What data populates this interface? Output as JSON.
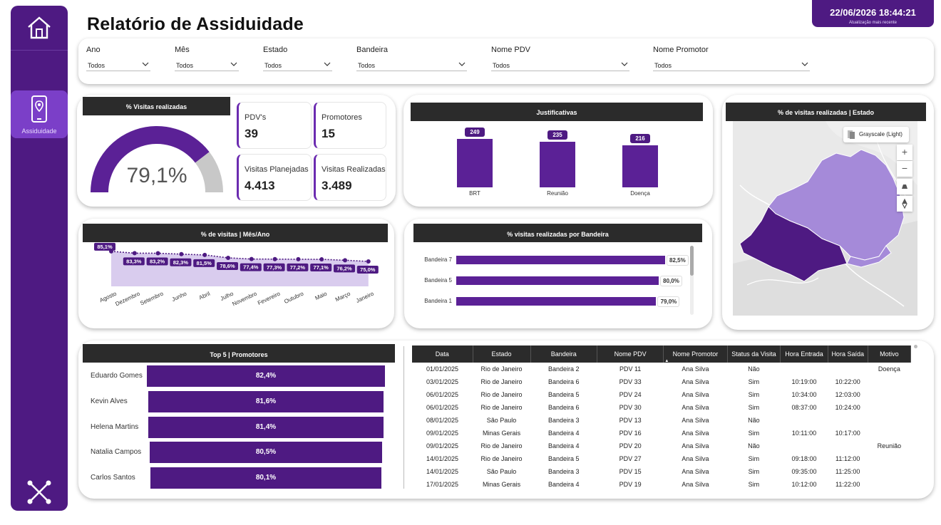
{
  "sidebar": {
    "home_icon": "home-icon",
    "item_label": "Assiduidade",
    "item_icon": "phone-location-icon",
    "bottom_icon": "network-icon"
  },
  "page": {
    "title": "Relatório de Assiduidade",
    "last_update_value": "22/06/2026 18:44:21",
    "last_update_label": "Atualização mais recente"
  },
  "filters": [
    {
      "label": "Ano",
      "value": "Todos"
    },
    {
      "label": "Mês",
      "value": "Todos"
    },
    {
      "label": "Estado",
      "value": "Todos"
    },
    {
      "label": "Bandeira",
      "value": "Todos"
    },
    {
      "label": "Nome PDV",
      "value": "Todos"
    },
    {
      "label": "Nome Promotor",
      "value": "Todos"
    }
  ],
  "gauge": {
    "header": "% Visitas realizadas",
    "value_text": "79,1%",
    "fraction": 0.791,
    "color_fill": "#5b2196",
    "color_rest": "#c8c8c8"
  },
  "kpis": [
    {
      "label": "PDV's",
      "value": "39"
    },
    {
      "label": "Promotores",
      "value": "15"
    },
    {
      "label": "Visitas Planejadas",
      "value": "4.413"
    },
    {
      "label": "Visitas Realizadas",
      "value": "3.489"
    }
  ],
  "justificativas": {
    "header": "Justificativas",
    "chart_data": {
      "type": "bar",
      "categories": [
        "BRT",
        "Reunião",
        "Doença"
      ],
      "values": [
        249,
        235,
        216
      ],
      "ylim": [
        0,
        249
      ]
    }
  },
  "map": {
    "header": "% de visitas realizadas | Estado",
    "style_button": "Grayscale (Light)",
    "zoom_in": "+",
    "zoom_out": "−"
  },
  "monthly": {
    "header": "% de visitas | Mês/Ano",
    "chart_data": {
      "type": "line",
      "categories": [
        "Agosto",
        "Dezembro",
        "Setembro",
        "Junho",
        "Abril",
        "Julho",
        "Novembro",
        "Fevereiro",
        "Outubro",
        "Maio",
        "Março",
        "Janeiro"
      ],
      "values": [
        85.1,
        83.3,
        83.2,
        82.3,
        81.5,
        78.6,
        77.4,
        77.3,
        77.2,
        77.1,
        76.2,
        75.0
      ],
      "labels": [
        "85,1%",
        "83,3%",
        "83,2%",
        "82,3%",
        "81,5%",
        "78,6%",
        "77,4%",
        "77,3%",
        "77,2%",
        "77,1%",
        "76,2%",
        "75,0%"
      ],
      "ylim": [
        0,
        90
      ]
    }
  },
  "bandeira": {
    "header": "% visitas realizadas por Bandeira",
    "chart_data": {
      "type": "bar",
      "categories": [
        "Bandeira 7",
        "Bandeira 5",
        "Bandeira 1"
      ],
      "values": [
        82.5,
        80.0,
        79.0
      ],
      "labels": [
        "82,5%",
        "80,0%",
        "79,0%"
      ],
      "xlim": [
        0,
        100
      ]
    }
  },
  "top5": {
    "header": "Top 5 | Promotores",
    "chart_data": {
      "type": "bar",
      "categories": [
        "Eduardo Gomes",
        "Kevin Alves",
        "Helena Martins",
        "Natalia Campos",
        "Carlos Santos"
      ],
      "values": [
        82.4,
        81.6,
        81.4,
        80.5,
        80.1
      ],
      "labels": [
        "82,4%",
        "81,6%",
        "81,4%",
        "80,5%",
        "80,1%"
      ],
      "xlim": [
        0,
        82.4
      ]
    }
  },
  "table": {
    "columns": [
      "Data",
      "Estado",
      "Bandeira",
      "Nome PDV",
      "Nome Promotor",
      "Status da Visita",
      "Hora Entrada",
      "Hora Saída",
      "Motivo"
    ],
    "rows": [
      [
        "01/01/2025",
        "Rio de Janeiro",
        "Bandeira 2",
        "PDV 11",
        "Ana Silva",
        "Não",
        "",
        "",
        "Doença"
      ],
      [
        "03/01/2025",
        "Rio de Janeiro",
        "Bandeira 6",
        "PDV 33",
        "Ana Silva",
        "Sim",
        "10:19:00",
        "10:22:00",
        ""
      ],
      [
        "06/01/2025",
        "Rio de Janeiro",
        "Bandeira 5",
        "PDV 24",
        "Ana Silva",
        "Sim",
        "10:34:00",
        "12:03:00",
        ""
      ],
      [
        "06/01/2025",
        "Rio de Janeiro",
        "Bandeira 6",
        "PDV 30",
        "Ana Silva",
        "Sim",
        "08:37:00",
        "10:24:00",
        ""
      ],
      [
        "08/01/2025",
        "São Paulo",
        "Bandeira 3",
        "PDV 13",
        "Ana Silva",
        "Não",
        "",
        "",
        ""
      ],
      [
        "09/01/2025",
        "Minas Gerais",
        "Bandeira 4",
        "PDV 16",
        "Ana Silva",
        "Sim",
        "10:11:00",
        "10:17:00",
        ""
      ],
      [
        "09/01/2025",
        "Rio de Janeiro",
        "Bandeira 4",
        "PDV 20",
        "Ana Silva",
        "Não",
        "",
        "",
        "Reunião"
      ],
      [
        "14/01/2025",
        "Rio de Janeiro",
        "Bandeira 5",
        "PDV 27",
        "Ana Silva",
        "Sim",
        "09:18:00",
        "11:12:00",
        ""
      ],
      [
        "14/01/2025",
        "São Paulo",
        "Bandeira 3",
        "PDV 15",
        "Ana Silva",
        "Sim",
        "09:35:00",
        "11:25:00",
        ""
      ],
      [
        "17/01/2025",
        "Minas Gerais",
        "Bandeira 4",
        "PDV 19",
        "Ana Silva",
        "Sim",
        "10:12:00",
        "11:22:00",
        ""
      ]
    ]
  },
  "colors": {
    "brand": "#4e1a82",
    "accent": "#5b2196",
    "map_light": "#a58ad9",
    "map_dark": "#4e1a82"
  }
}
